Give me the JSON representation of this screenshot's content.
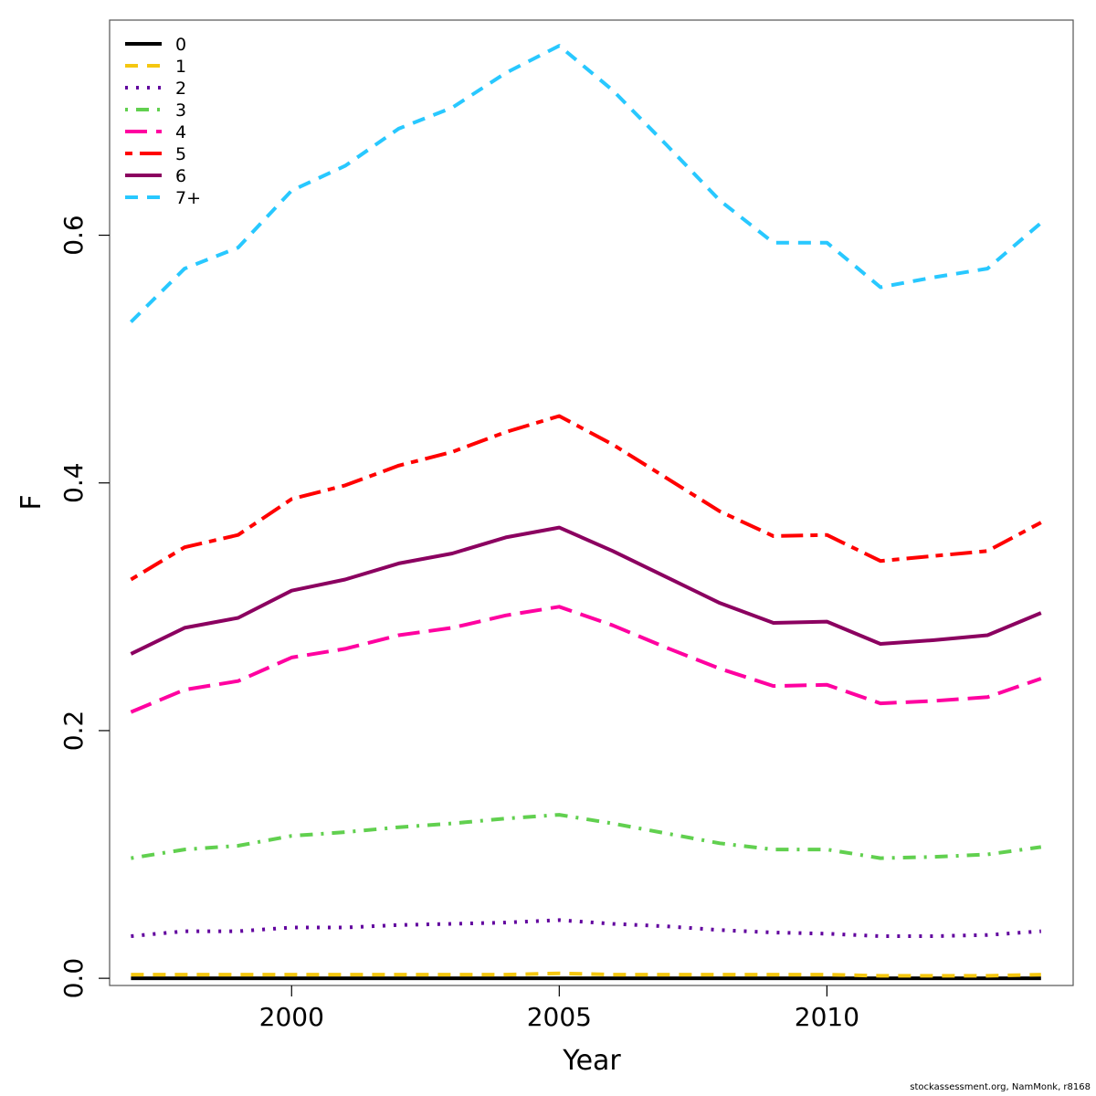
{
  "chart_data": {
    "type": "line",
    "title": "",
    "xlabel": "Year",
    "ylabel": "F",
    "xlim": [
      1996.6,
      2014.6
    ],
    "ylim": [
      -0.0058,
      0.7737
    ],
    "xticks": [
      2000,
      2005,
      2010
    ],
    "yticks": [
      0.0,
      0.2,
      0.4,
      0.6
    ],
    "ytick_labels": [
      "0.0",
      "0.2",
      "0.4",
      "0.6"
    ],
    "grid": false,
    "legend_position": "top-left",
    "x": [
      1997,
      1998,
      1999,
      2000,
      2001,
      2002,
      2003,
      2004,
      2005,
      2006,
      2007,
      2008,
      2009,
      2010,
      2011,
      2012,
      2013,
      2014
    ],
    "series": [
      {
        "name": "0",
        "color": "#000000",
        "dash": "solid",
        "values": [
          0.0,
          0.0,
          0.0,
          0.0,
          0.0,
          0.0,
          0.0,
          0.0,
          0.0,
          0.0,
          0.0,
          0.0,
          0.0,
          0.0,
          0.0,
          0.0,
          0.0,
          0.0
        ]
      },
      {
        "name": "1",
        "color": "#F5C710",
        "dash": "dashed",
        "values": [
          0.003,
          0.003,
          0.003,
          0.003,
          0.003,
          0.003,
          0.003,
          0.003,
          0.004,
          0.003,
          0.003,
          0.003,
          0.003,
          0.003,
          0.002,
          0.002,
          0.002,
          0.003
        ]
      },
      {
        "name": "2",
        "color": "#61009E",
        "dash": "dotted",
        "values": [
          0.034,
          0.038,
          0.038,
          0.041,
          0.041,
          0.043,
          0.044,
          0.045,
          0.047,
          0.044,
          0.042,
          0.039,
          0.037,
          0.036,
          0.034,
          0.034,
          0.035,
          0.038
        ]
      },
      {
        "name": "3",
        "color": "#61D04F",
        "dash": "dotdash",
        "values": [
          0.097,
          0.104,
          0.107,
          0.115,
          0.118,
          0.122,
          0.125,
          0.129,
          0.132,
          0.125,
          0.117,
          0.109,
          0.104,
          0.104,
          0.097,
          0.098,
          0.1,
          0.106
        ]
      },
      {
        "name": "4",
        "color": "#FF00A0",
        "dash": "longdash",
        "values": [
          0.215,
          0.233,
          0.24,
          0.259,
          0.266,
          0.277,
          0.283,
          0.293,
          0.3,
          0.285,
          0.267,
          0.25,
          0.236,
          0.237,
          0.222,
          0.224,
          0.227,
          0.242
        ]
      },
      {
        "name": "5",
        "color": "#FF0000",
        "dash": "twodash",
        "values": [
          0.322,
          0.348,
          0.358,
          0.387,
          0.398,
          0.414,
          0.425,
          0.441,
          0.454,
          0.431,
          0.404,
          0.377,
          0.357,
          0.358,
          0.337,
          0.341,
          0.345,
          0.368
        ]
      },
      {
        "name": "6",
        "color": "#8B0060",
        "dash": "solid",
        "values": [
          0.262,
          0.283,
          0.291,
          0.313,
          0.322,
          0.335,
          0.343,
          0.356,
          0.364,
          0.345,
          0.324,
          0.303,
          0.287,
          0.288,
          0.27,
          0.273,
          0.277,
          0.295
        ]
      },
      {
        "name": "7+",
        "color": "#28C8FF",
        "dash": "dashed",
        "values": [
          0.53,
          0.573,
          0.59,
          0.636,
          0.656,
          0.686,
          0.703,
          0.731,
          0.753,
          0.717,
          0.673,
          0.628,
          0.594,
          0.594,
          0.558,
          0.566,
          0.573,
          0.61
        ]
      }
    ]
  },
  "footer": {
    "credit": "stockassessment.org, NamMonk, r8168"
  }
}
